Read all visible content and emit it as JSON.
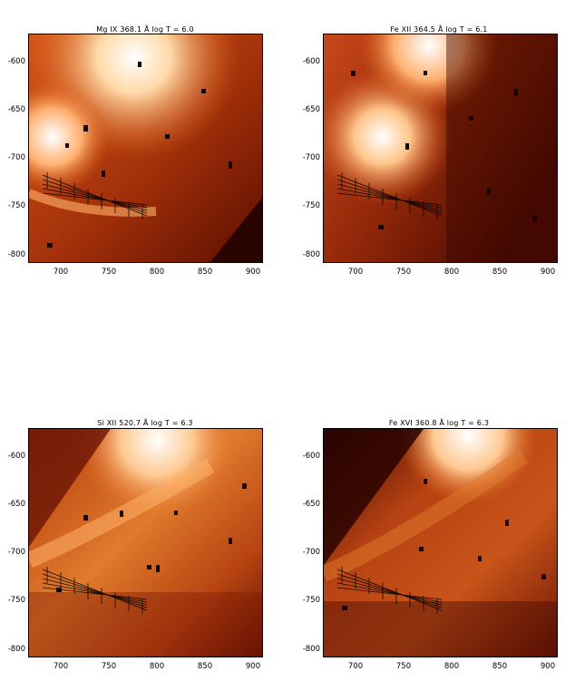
{
  "panels": [
    {
      "id": "mg9",
      "title": "Mg IX  368.1 Å log T = 6.0",
      "x_ticks": [
        "700",
        "750",
        "800",
        "850",
        "900"
      ],
      "y_ticks": [
        "-800",
        "-750",
        "-700",
        "-650",
        "-600"
      ],
      "colormap": "red-orange heat",
      "overlay": "cross-hatched loop footpoint region"
    },
    {
      "id": "fe12",
      "title": "Fe XII  364.5 Å log T = 6.1",
      "x_ticks": [
        "700",
        "750",
        "800",
        "850",
        "900"
      ],
      "y_ticks": [
        "-800",
        "-750",
        "-700",
        "-650",
        "-600"
      ],
      "colormap": "red-orange heat",
      "overlay": "cross-hatched loop footpoint region"
    },
    {
      "id": "si12",
      "title": "Si XII  520.7 Å log T = 6.3",
      "x_ticks": [
        "700",
        "750",
        "800",
        "850",
        "900"
      ],
      "y_ticks": [
        "-800",
        "-750",
        "-700",
        "-650",
        "-600"
      ],
      "colormap": "red-orange heat",
      "overlay": "cross-hatched loop footpoint region"
    },
    {
      "id": "fe16",
      "title": "Fe XVI  360.8 Å log T = 6.3",
      "x_ticks": [
        "700",
        "750",
        "800",
        "850",
        "900"
      ],
      "y_ticks": [
        "-800",
        "-750",
        "-700",
        "-650",
        "-600"
      ],
      "colormap": "red-orange heat",
      "overlay": "cross-hatched loop footpoint region"
    }
  ]
}
